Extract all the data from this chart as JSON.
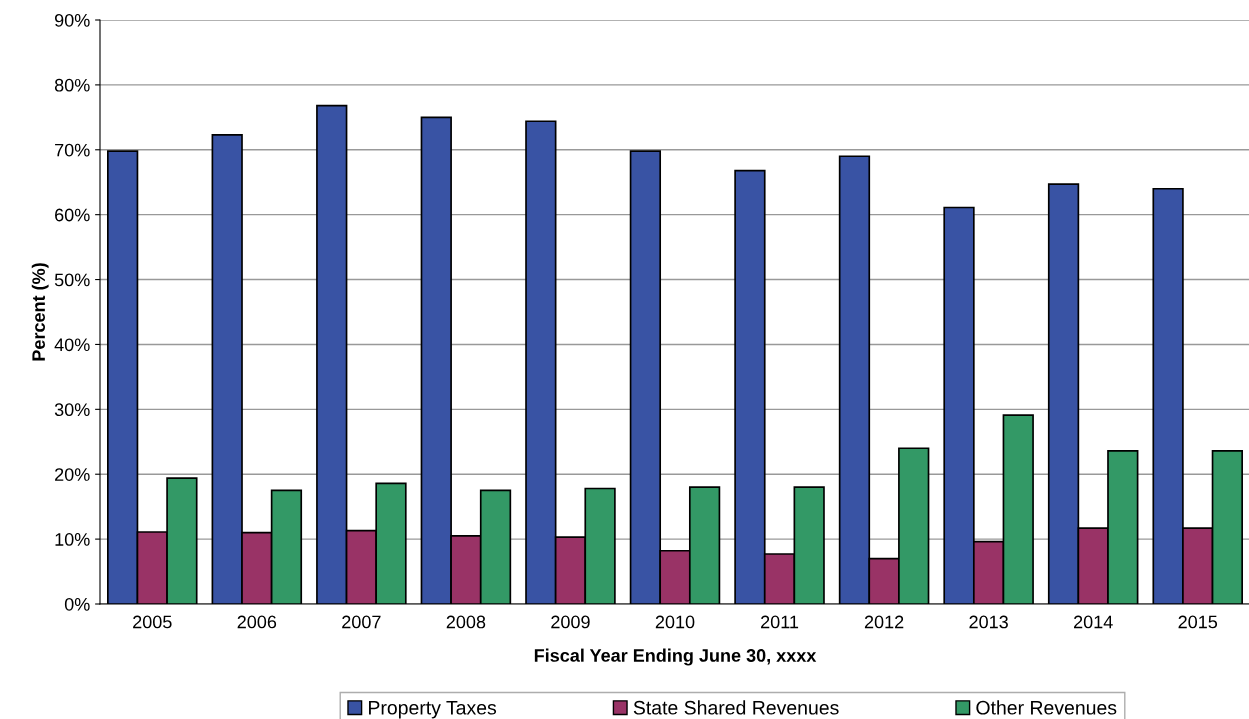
{
  "chart_data": {
    "type": "bar",
    "xlabel": "Fiscal Year Ending June 30, xxxx",
    "ylabel": "Percent (%)",
    "categories": [
      "2005",
      "2006",
      "2007",
      "2008",
      "2009",
      "2010",
      "2011",
      "2012",
      "2013",
      "2014",
      "2015"
    ],
    "series": [
      {
        "name": "Property Taxes",
        "color": "#3953a4",
        "values": [
          69.8,
          72.3,
          76.8,
          75.0,
          74.4,
          69.8,
          66.8,
          69.0,
          61.1,
          64.7,
          64.0
        ]
      },
      {
        "name": "State Shared Revenues",
        "color": "#993366",
        "values": [
          11.1,
          11.0,
          11.3,
          10.5,
          10.3,
          8.2,
          7.7,
          7.0,
          9.6,
          11.7,
          11.7
        ]
      },
      {
        "name": "Other Revenues",
        "color": "#339966",
        "values": [
          19.4,
          17.5,
          18.6,
          17.5,
          17.8,
          18.0,
          18.0,
          24.0,
          29.1,
          23.6,
          23.6
        ]
      }
    ],
    "ylim": [
      0,
      90
    ],
    "yticks": [
      {
        "value": 0,
        "label": "0%"
      },
      {
        "value": 10,
        "label": "10%"
      },
      {
        "value": 20,
        "label": "20%"
      },
      {
        "value": 30,
        "label": "30%"
      },
      {
        "value": 40,
        "label": "40%"
      },
      {
        "value": 50,
        "label": "50%"
      },
      {
        "value": 60,
        "label": "60%"
      },
      {
        "value": 70,
        "label": "70%"
      },
      {
        "value": 80,
        "label": "80%"
      },
      {
        "value": 90,
        "label": "90%"
      }
    ],
    "grid": "y",
    "legend": "bottom"
  }
}
